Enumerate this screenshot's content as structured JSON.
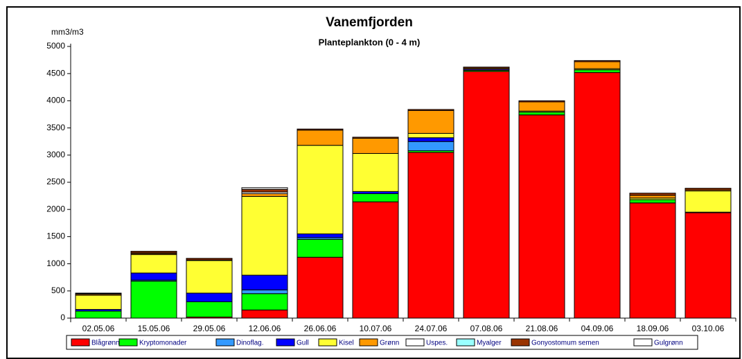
{
  "chart_data": {
    "type": "stacked_bar",
    "title": "Vanemfjorden",
    "subtitle": "Planteplankton (0 - 4 m)",
    "y_label": "mm3/m3",
    "categories": [
      "02.05.06",
      "15.05.06",
      "29.05.06",
      "12.06.06",
      "26.06.06",
      "10.07.06",
      "24.07.06",
      "07.08.06",
      "21.08.06",
      "04.09.06",
      "18.09.06",
      "03.10.06"
    ],
    "series": [
      {
        "name": "Blågrønn",
        "color": "#ff0000",
        "values": [
          0,
          0,
          20,
          150,
          1120,
          2140,
          3050,
          4540,
          3740,
          4520,
          2120,
          1940
        ]
      },
      {
        "name": "Kryptomonader",
        "color": "#00ff00",
        "values": [
          130,
          680,
          280,
          300,
          330,
          150,
          30,
          20,
          50,
          50,
          60,
          10
        ]
      },
      {
        "name": "Dinoflag.",
        "color": "#3399ff",
        "values": [
          0,
          20,
          0,
          70,
          30,
          0,
          170,
          0,
          0,
          0,
          0,
          0
        ]
      },
      {
        "name": "Gull",
        "color": "#0000ff",
        "values": [
          30,
          130,
          160,
          270,
          70,
          40,
          70,
          20,
          0,
          0,
          0,
          0
        ]
      },
      {
        "name": "Kisel",
        "color": "#ffff33",
        "values": [
          260,
          340,
          600,
          1450,
          1630,
          700,
          80,
          0,
          20,
          20,
          30,
          390
        ]
      },
      {
        "name": "Grønn",
        "color": "#ff9900",
        "values": [
          20,
          20,
          10,
          50,
          280,
          280,
          420,
          20,
          170,
          130,
          50,
          20
        ]
      },
      {
        "name": "Uspes.",
        "color": "#ffffff",
        "values": [
          10,
          10,
          0,
          30,
          0,
          0,
          0,
          0,
          0,
          0,
          0,
          0
        ]
      },
      {
        "name": "Myalger",
        "color": "#99ffff",
        "values": [
          0,
          0,
          0,
          0,
          0,
          0,
          0,
          0,
          0,
          0,
          0,
          0
        ]
      },
      {
        "name": "Gonyostomum semen",
        "color": "#993300",
        "values": [
          10,
          30,
          30,
          50,
          20,
          20,
          20,
          20,
          20,
          20,
          40,
          30
        ]
      },
      {
        "name": "Gulgrønn",
        "color": "#ffffff",
        "values": [
          0,
          0,
          0,
          30,
          0,
          0,
          0,
          0,
          0,
          0,
          0,
          0
        ]
      }
    ],
    "ylim": [
      0,
      5000
    ],
    "yticks": [
      0,
      500,
      1000,
      1500,
      2000,
      2500,
      3000,
      3500,
      4000,
      4500,
      5000
    ],
    "grid": false
  }
}
